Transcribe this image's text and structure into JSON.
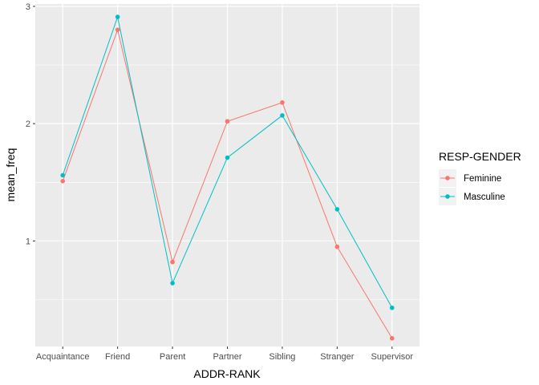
{
  "chart_data": {
    "type": "line",
    "xlabel": "ADDR-RANK",
    "ylabel": "mean_freq",
    "categories": [
      "Acquaintance",
      "Friend",
      "Parent",
      "Partner",
      "Sibling",
      "Stranger",
      "Supervisor"
    ],
    "ylim": [
      0.1,
      3.02
    ],
    "yticks": [
      1,
      2,
      3
    ],
    "grid": true,
    "legend": {
      "title": "RESP-GENDER",
      "position": "right"
    },
    "series": [
      {
        "name": "Feminine",
        "color": "#F8766D",
        "values": [
          1.51,
          2.8,
          0.82,
          2.02,
          2.18,
          0.95,
          0.17
        ]
      },
      {
        "name": "Masculine",
        "color": "#00BFC4",
        "values": [
          1.56,
          2.91,
          0.64,
          1.71,
          2.07,
          1.27,
          0.43
        ]
      }
    ]
  }
}
